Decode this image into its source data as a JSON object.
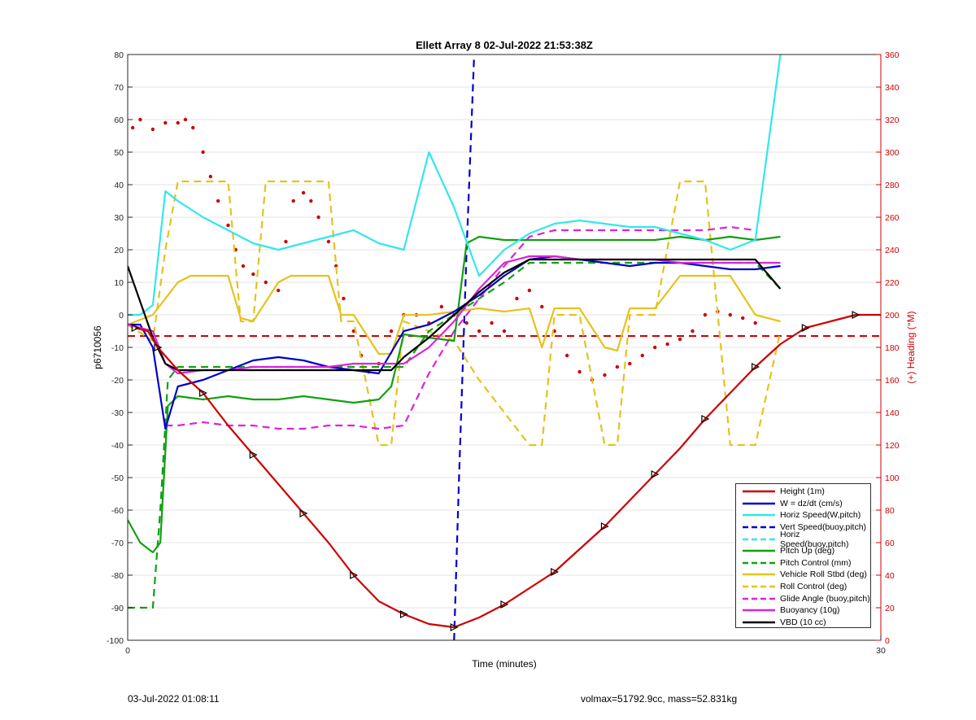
{
  "title": "Ellett Array 8 02-Jul-2022 21:53:38Z",
  "footer": {
    "left": "03-Jul-2022 01:08:11",
    "right": "volmax=51792.9cc, mass=52.831kg"
  },
  "colors": {
    "red": "#cc0000",
    "blue": "#0000cc",
    "cyan": "#33e6ee",
    "green": "#11a011",
    "gold": "#e5c21e",
    "magenta": "#dd22dd",
    "black": "#000000",
    "axis_right": "#cc0000"
  },
  "chart_data": {
    "type": "line",
    "xlabel": "Time (minutes)",
    "ylabel": "p6710056",
    "y2label": "(+) Heading (°M)",
    "xlim": [
      0,
      30
    ],
    "ylim": [
      -100,
      80
    ],
    "y2lim": [
      0,
      360
    ],
    "xticks": [
      0,
      30
    ],
    "yticks": [
      -100,
      -90,
      -80,
      -70,
      -60,
      -50,
      -40,
      -30,
      -20,
      -10,
      0,
      10,
      20,
      30,
      40,
      50,
      60,
      70,
      80
    ],
    "y2ticks": [
      0,
      20,
      40,
      60,
      80,
      100,
      120,
      140,
      160,
      180,
      200,
      220,
      240,
      260,
      280,
      300,
      320,
      340,
      360
    ],
    "grid": true,
    "legend_position": "bottom-right",
    "series": [
      {
        "name": "Height (1m)",
        "style": "solid",
        "color": "#cc0000",
        "markers": "triangle",
        "x": [
          0.3,
          0.8,
          1.2,
          2,
          3,
          4,
          5,
          6,
          7,
          8,
          9,
          10,
          11,
          12,
          13,
          14,
          15,
          16,
          17,
          18,
          19,
          20,
          21,
          22,
          23,
          24,
          25,
          26,
          27,
          28,
          29,
          30
        ],
        "values": [
          -4,
          -5,
          -10,
          -17,
          -24,
          -34,
          -43,
          -52,
          -61,
          -70,
          -80,
          -88,
          -92,
          -95,
          -96,
          -93,
          -89,
          -84,
          -79,
          -72,
          -65,
          -57,
          -49,
          -41,
          -32,
          -24,
          -16,
          -9,
          -4,
          -2,
          0,
          0
        ]
      },
      {
        "name": "W = dz/dt (cm/s)",
        "style": "solid",
        "color": "#0000cc",
        "x": [
          0,
          0.5,
          1,
          1.5,
          2,
          3,
          4,
          5,
          6,
          7,
          8,
          9,
          10,
          11,
          12,
          13,
          14,
          15,
          16,
          17,
          18,
          19,
          20,
          21,
          22,
          23,
          24,
          25,
          26
        ],
        "values": [
          -3,
          -3,
          -10,
          -35,
          -22,
          -20,
          -17,
          -14,
          -13,
          -14,
          -16,
          -17,
          -18,
          -5,
          -3,
          1,
          6,
          12,
          17,
          18,
          17,
          16,
          15,
          16,
          16,
          15,
          14,
          14,
          15
        ]
      },
      {
        "name": "Horiz Speed(W,pitch)",
        "style": "solid",
        "color": "#33e6ee",
        "x": [
          0,
          0.5,
          1,
          1.5,
          2,
          3,
          4,
          5,
          6,
          7,
          8,
          9,
          10,
          11,
          12,
          13,
          14,
          15,
          16,
          17,
          18,
          19,
          20,
          21,
          22,
          23,
          24,
          25,
          26
        ],
        "values": [
          0,
          0,
          3,
          38,
          35,
          30,
          26,
          22,
          20,
          22,
          24,
          26,
          22,
          20,
          50,
          33,
          12,
          20,
          25,
          28,
          29,
          28,
          27,
          27,
          25,
          23,
          20,
          23,
          80
        ]
      },
      {
        "name": "Vert Speed(buoy,pitch)",
        "style": "dashed",
        "color": "#0000cc",
        "x": [
          13.0,
          13.2,
          13.5,
          13.8
        ],
        "values": [
          -100,
          -50,
          20,
          80
        ]
      },
      {
        "name": "Horiz Speed(buoy,pitch)",
        "style": "dashed",
        "color": "#33e6ee",
        "x": [],
        "values": []
      },
      {
        "name": "Pitch Up (deg)",
        "style": "solid",
        "color": "#11a011",
        "x": [
          0,
          0.5,
          1,
          1.3,
          1.6,
          2,
          3,
          4,
          5,
          6,
          7,
          8,
          9,
          10,
          10.5,
          11,
          12,
          13,
          13.5,
          14,
          15,
          16,
          17,
          18,
          19,
          20,
          21,
          22,
          23,
          24,
          25,
          26
        ],
        "values": [
          -63,
          -70,
          -73,
          -70,
          -28,
          -25,
          -26,
          -25,
          -26,
          -26,
          -25,
          -26,
          -27,
          -26,
          -22,
          -6,
          -7,
          -8,
          22,
          24,
          23,
          23,
          23,
          23,
          23,
          23,
          23,
          24,
          23,
          24,
          23,
          24
        ]
      },
      {
        "name": "Pitch Control (mm)",
        "style": "dashed",
        "color": "#11a011",
        "x": [
          0,
          1,
          1.3,
          1.6,
          2,
          4,
          6,
          8,
          10,
          11,
          12,
          13,
          14,
          15,
          16,
          17,
          18,
          20,
          22,
          24,
          25,
          26
        ],
        "values": [
          -90,
          -90,
          -60,
          -20,
          -16,
          -16,
          -16,
          -16,
          -16,
          -16,
          -5,
          0,
          5,
          10,
          16,
          16,
          16,
          16,
          16,
          16,
          16,
          8
        ]
      },
      {
        "name": "Vehicle Roll Stbd (deg)",
        "style": "solid",
        "color": "#e5c21e",
        "x": [
          0,
          1,
          2,
          2.5,
          3,
          4,
          4.5,
          5,
          6,
          6.5,
          7,
          8,
          8.5,
          9,
          10,
          10.5,
          11,
          12,
          13,
          14,
          15,
          16,
          16.5,
          17,
          18,
          19,
          19.5,
          20,
          21,
          22,
          22.5,
          23,
          24,
          25,
          26
        ],
        "values": [
          -3,
          0,
          10,
          12,
          12,
          12,
          -1,
          -2,
          10,
          12,
          12,
          12,
          0,
          0,
          -12,
          -12,
          0,
          0,
          1,
          2,
          1,
          2,
          -10,
          2,
          2,
          -10,
          -11,
          2,
          2,
          12,
          12,
          12,
          12,
          0,
          -2
        ]
      },
      {
        "name": "Roll Control (deg)",
        "style": "dashed",
        "color": "#e5c21e",
        "x": [
          0,
          1,
          1.5,
          2,
          2.5,
          4,
          4.5,
          5,
          5.5,
          6,
          7,
          8,
          8.5,
          9,
          10,
          10.5,
          11,
          12,
          13,
          14,
          15,
          16,
          16.5,
          17,
          18,
          19,
          19.5,
          20,
          21,
          22,
          22.5,
          23,
          24,
          25,
          26
        ],
        "values": [
          -3,
          -8,
          20,
          41,
          41,
          41,
          -2,
          -2,
          41,
          41,
          41,
          41,
          -2,
          -2,
          -40,
          -40,
          -2,
          -5,
          -8,
          -20,
          -30,
          -40,
          -40,
          0,
          0,
          -40,
          -40,
          0,
          0,
          41,
          41,
          41,
          -40,
          -40,
          -5
        ]
      },
      {
        "name": "Glide Angle (buoy,pitch)",
        "style": "dashed",
        "color": "#dd22dd",
        "x": [
          1.5,
          2,
          3,
          4,
          5,
          6,
          7,
          8,
          9,
          10,
          11,
          12,
          13,
          14,
          15,
          16,
          17,
          18,
          19,
          20,
          21,
          22,
          23,
          24,
          25
        ],
        "values": [
          -34,
          -34,
          -33,
          -34,
          -34,
          -35,
          -35,
          -34,
          -34,
          -35,
          -34,
          -18,
          -5,
          5,
          15,
          24,
          26,
          26,
          26,
          26,
          26,
          26,
          26,
          27,
          26
        ]
      },
      {
        "name": "Buoyancy (10g)",
        "style": "solid",
        "color": "#dd22dd",
        "x": [
          0,
          1,
          1.5,
          2,
          3,
          4,
          5,
          6,
          7,
          8,
          9,
          10,
          11,
          12,
          13,
          14,
          15,
          16,
          17,
          18,
          19,
          20,
          21,
          22,
          23,
          24,
          25,
          26
        ],
        "values": [
          -3,
          -5,
          -15,
          -18,
          -17,
          -17,
          -16,
          -16,
          -16,
          -16,
          -15,
          -15,
          -15,
          -10,
          -2,
          8,
          16,
          18,
          18,
          17,
          17,
          17,
          17,
          16,
          16,
          16,
          16,
          16
        ]
      },
      {
        "name": "VBD (10 cc)",
        "style": "solid",
        "color": "#000000",
        "x": [
          0,
          1,
          1.5,
          2,
          3,
          4,
          5,
          6,
          7,
          8,
          9,
          10,
          10.5,
          11,
          12,
          13,
          14,
          15,
          16,
          17,
          18,
          19,
          20,
          21,
          22,
          23,
          24,
          25,
          26
        ],
        "values": [
          15,
          -7,
          -15,
          -17,
          -17,
          -17,
          -17,
          -17,
          -17,
          -17,
          -17,
          -17,
          -17,
          -13,
          -7,
          0,
          7,
          13,
          17,
          17,
          17,
          17,
          17,
          17,
          17,
          17,
          17,
          17,
          8
        ]
      }
    ],
    "heading_series": {
      "name": "Heading",
      "axis": "right",
      "style": "dotted",
      "color": "#cc0000",
      "x": [
        0.2,
        0.5,
        1,
        1.5,
        2,
        2.3,
        2.6,
        3,
        3.3,
        3.6,
        4,
        4.3,
        4.6,
        5,
        5.5,
        6,
        6.3,
        6.6,
        7,
        7.3,
        7.6,
        8,
        8.3,
        8.6,
        9,
        9.3,
        9.6,
        10,
        10.5,
        11,
        11.5,
        12,
        12.5,
        13,
        13.5,
        14,
        14.5,
        15,
        15.5,
        16,
        16.5,
        17,
        17.5,
        18,
        18.5,
        19,
        19.5,
        20,
        20.5,
        21,
        21.5,
        22,
        22.5,
        23,
        23.5,
        24,
        24.5,
        25
      ],
      "values": [
        315,
        320,
        314,
        318,
        318,
        320,
        315,
        300,
        285,
        270,
        255,
        240,
        230,
        225,
        220,
        215,
        245,
        270,
        275,
        270,
        260,
        245,
        230,
        210,
        190,
        175,
        165,
        170,
        190,
        200,
        200,
        195,
        205,
        200,
        195,
        190,
        195,
        190,
        210,
        215,
        205,
        190,
        175,
        165,
        160,
        163,
        168,
        170,
        175,
        180,
        182,
        185,
        190,
        200,
        202,
        200,
        198,
        195
      ]
    },
    "reference_line": {
      "axis": "right",
      "value": 187,
      "style": "dashed",
      "color": "#cc0000"
    }
  }
}
